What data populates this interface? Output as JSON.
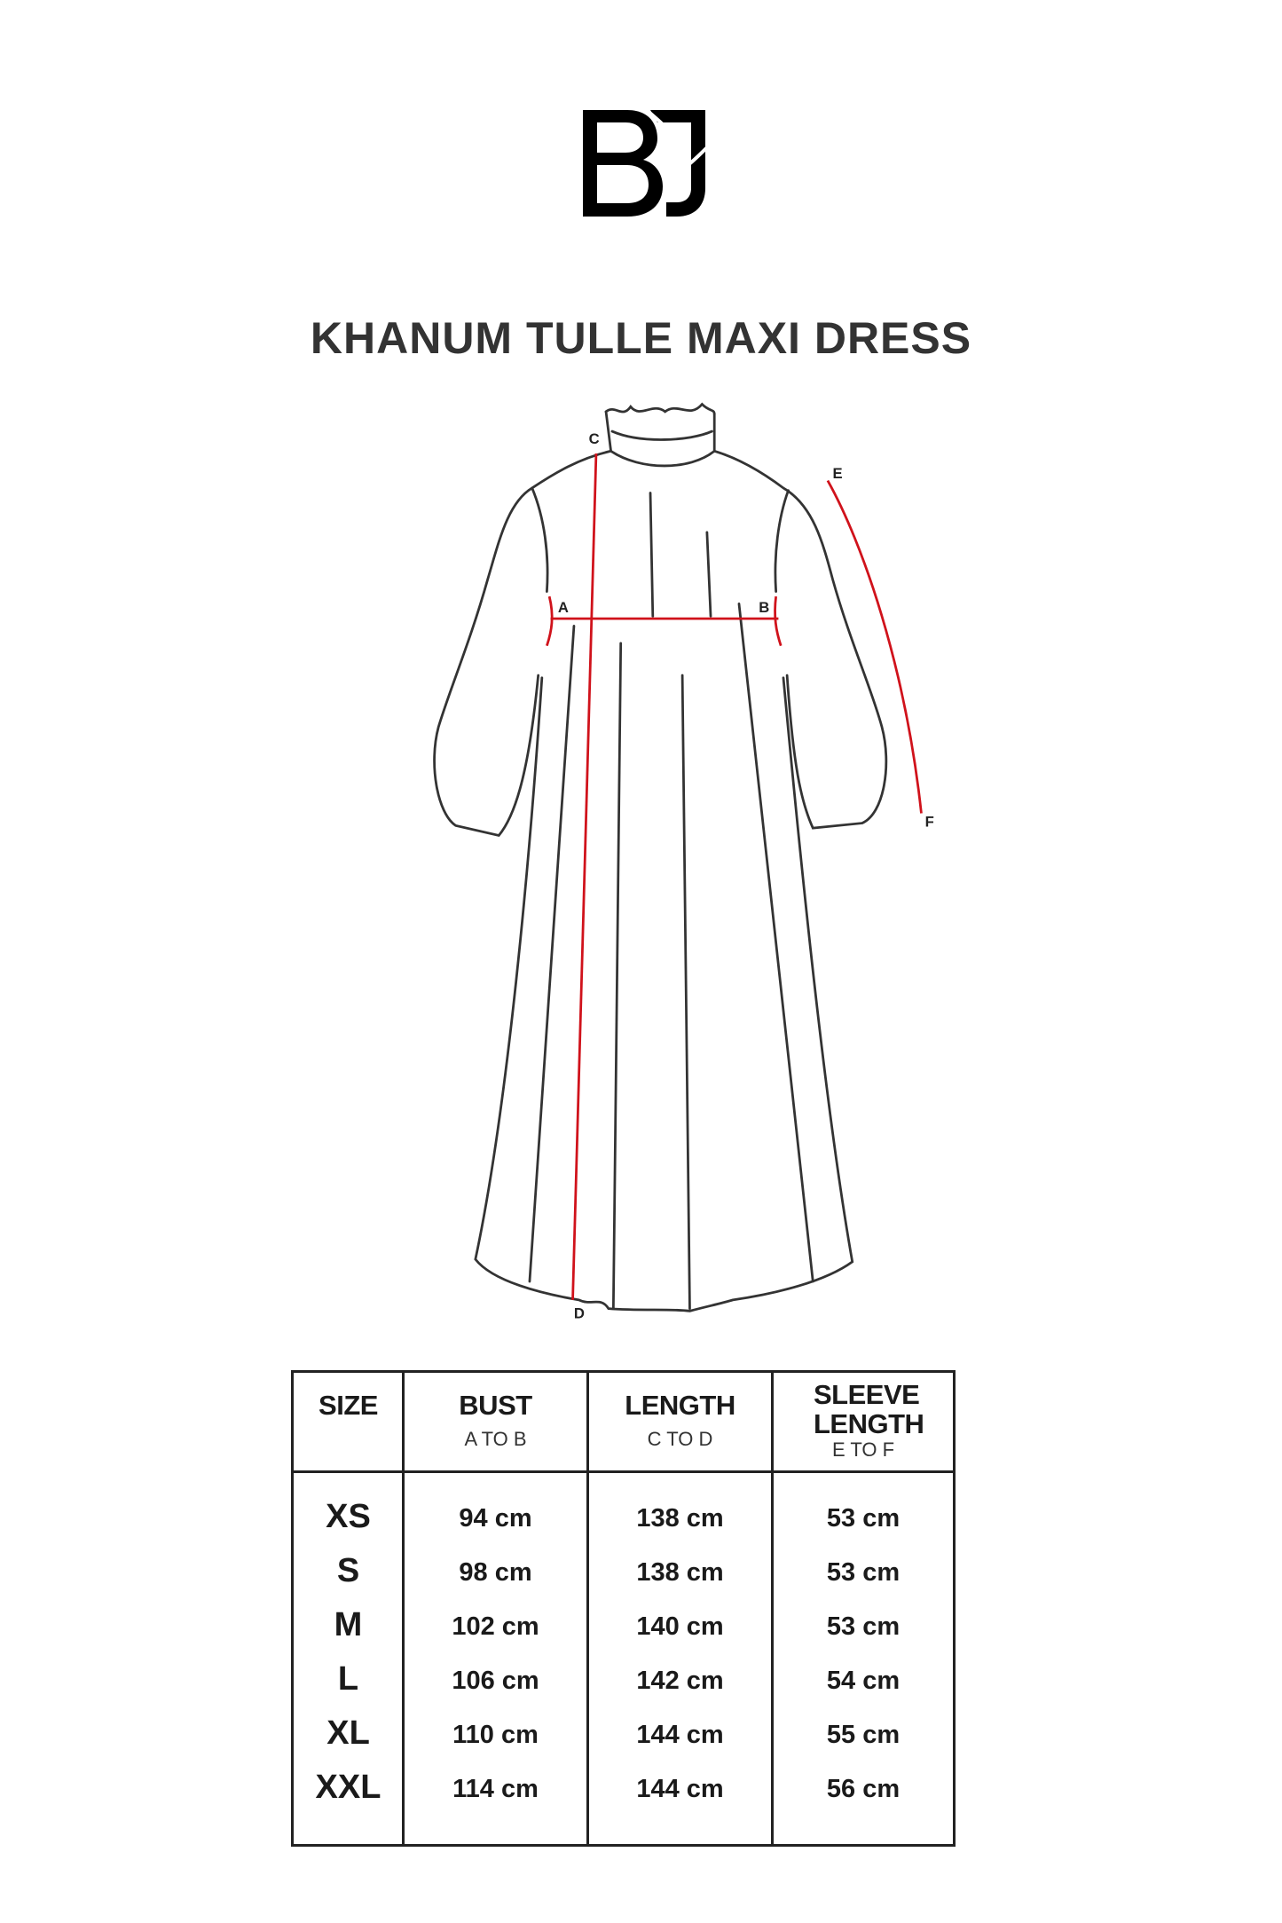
{
  "brand": {
    "logo_text": "BJ"
  },
  "title": "KHANUM TULLE MAXI DRESS",
  "diagram": {
    "points": {
      "A": "A",
      "B": "B",
      "C": "C",
      "D": "D",
      "E": "E",
      "F": "F"
    },
    "measure_color": "#d0121b",
    "outline_color": "#333333"
  },
  "table": {
    "headers": [
      {
        "main": "SIZE",
        "sub": ""
      },
      {
        "main": "BUST",
        "sub": "A TO B"
      },
      {
        "main": "LENGTH",
        "sub": "C TO D"
      },
      {
        "main": "SLEEVE LENGTH",
        "sub": "E TO F"
      }
    ],
    "rows": [
      {
        "size": "XS",
        "bust": "94 cm",
        "length": "138 cm",
        "sleeve": "53 cm"
      },
      {
        "size": "S",
        "bust": "98 cm",
        "length": "138 cm",
        "sleeve": "53 cm"
      },
      {
        "size": "M",
        "bust": "102 cm",
        "length": "140 cm",
        "sleeve": "53 cm"
      },
      {
        "size": "L",
        "bust": "106 cm",
        "length": "142 cm",
        "sleeve": "54 cm"
      },
      {
        "size": "XL",
        "bust": "110 cm",
        "length": "144 cm",
        "sleeve": "55 cm"
      },
      {
        "size": "XXL",
        "bust": "114 cm",
        "length": "144 cm",
        "sleeve": "56 cm"
      }
    ]
  }
}
